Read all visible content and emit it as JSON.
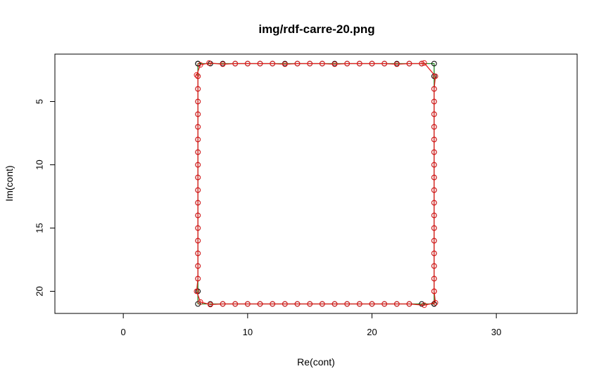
{
  "chart_data": {
    "type": "scatter",
    "title": "img/rdf-carre-20.png",
    "xlabel": "Re(cont)",
    "ylabel": "Im(cont)",
    "xlim": [
      -5.5,
      36.5
    ],
    "ylim": [
      21.75,
      1.25
    ],
    "y_axis_reversed": true,
    "x_ticks": [
      0,
      10,
      20,
      30
    ],
    "x_tick_labels": [
      "0",
      "10",
      "20",
      "30"
    ],
    "y_ticks": [
      5,
      10,
      15,
      20
    ],
    "y_tick_labels": [
      "5",
      "10",
      "15",
      "20"
    ],
    "grid": false,
    "legend": "none",
    "colors": {
      "contour": "#000000",
      "reconstruction_line": "#228b22",
      "reconstruction_points": "#e31a1c"
    },
    "series": [
      {
        "style": "points-and-line",
        "marker_color": "#000000",
        "line_color": "#228b22",
        "x": [
          6,
          7,
          8,
          9,
          10,
          11,
          12,
          13,
          14,
          15,
          16,
          17,
          18,
          19,
          20,
          21,
          22,
          23,
          24,
          25,
          25,
          25,
          25,
          25,
          25,
          25,
          25,
          25,
          25,
          25,
          25,
          25,
          25,
          25,
          25,
          25,
          25,
          25,
          25,
          25,
          24,
          23,
          22,
          21,
          20,
          19,
          18,
          17,
          16,
          15,
          14,
          13,
          12,
          11,
          10,
          9,
          8,
          7,
          6,
          6,
          6,
          6,
          6,
          6,
          6,
          6,
          6,
          6,
          6,
          6,
          6,
          6,
          6,
          6,
          6,
          6,
          6,
          6
        ],
        "y": [
          2,
          2,
          2,
          2,
          2,
          2,
          2,
          2,
          2,
          2,
          2,
          2,
          2,
          2,
          2,
          2,
          2,
          2,
          2,
          2,
          3,
          4,
          5,
          6,
          7,
          8,
          9,
          10,
          11,
          12,
          13,
          14,
          15,
          16,
          17,
          18,
          19,
          20,
          21,
          21,
          21,
          21,
          21,
          21,
          21,
          21,
          21,
          21,
          21,
          21,
          21,
          21,
          21,
          21,
          21,
          21,
          21,
          21,
          21,
          20,
          19,
          18,
          17,
          16,
          15,
          14,
          13,
          12,
          11,
          10,
          9,
          8,
          7,
          6,
          5,
          4,
          3,
          2
        ]
      },
      {
        "style": "points-and-line",
        "marker_color": "#e31a1c",
        "line_color": "#e31a1c",
        "x": [
          6.9,
          8,
          9,
          10,
          11,
          12,
          13,
          14,
          15,
          16,
          17,
          18,
          19,
          20,
          21,
          22,
          23,
          24,
          24.2,
          25.1,
          25,
          25,
          25,
          25,
          25,
          25,
          25,
          25,
          25,
          25,
          25,
          25,
          25,
          25,
          25,
          25,
          25,
          25,
          25.1,
          24.2,
          23,
          22,
          21,
          20,
          19,
          18,
          17,
          16,
          15,
          14,
          13,
          12,
          11,
          10,
          9,
          8,
          7,
          6.2,
          5.9,
          6,
          6,
          6,
          6,
          6,
          6,
          6,
          6,
          6,
          6,
          6,
          6,
          6,
          6,
          6,
          6,
          6,
          5.9,
          6.2
        ],
        "y": [
          1.95,
          2.05,
          2.0,
          2.0,
          2.0,
          2.0,
          2.05,
          2.0,
          2.0,
          2.0,
          2.05,
          2.0,
          2.0,
          2.0,
          2.0,
          2.05,
          2.0,
          2.0,
          1.95,
          3.0,
          4.0,
          5.0,
          6.0,
          7.0,
          8.0,
          9.0,
          10.0,
          11.0,
          12.0,
          13.0,
          14.0,
          15.0,
          16.0,
          17.0,
          18.0,
          19.0,
          20.0,
          20.0,
          20.9,
          21.1,
          21.0,
          21.0,
          21.0,
          21.0,
          21.0,
          21.0,
          21.0,
          21.0,
          21.0,
          21.0,
          21.0,
          21.0,
          21.0,
          21.0,
          21.0,
          21.0,
          21.05,
          20.85,
          20.0,
          19.0,
          18.0,
          17.0,
          16.0,
          15.0,
          14.0,
          13.0,
          12.0,
          11.0,
          10.0,
          9.0,
          8.0,
          7.0,
          6.0,
          5.0,
          4.0,
          3.0,
          2.9,
          2.1
        ]
      }
    ]
  }
}
